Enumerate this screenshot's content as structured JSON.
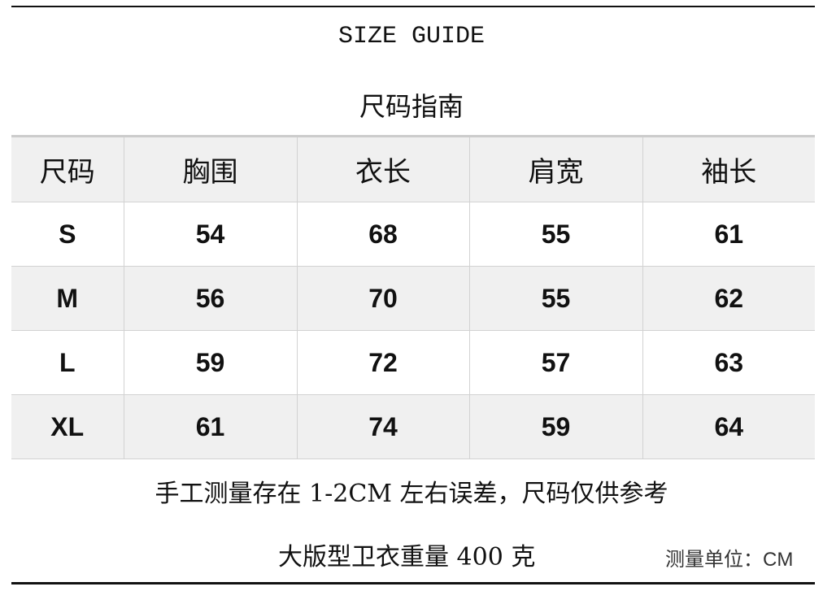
{
  "title_en": "SIZE GUIDE",
  "title_cn": "尺码指南",
  "table": {
    "headers": [
      "尺码",
      "胸围",
      "衣长",
      "肩宽",
      "袖长"
    ],
    "rows": [
      [
        "S",
        "54",
        "68",
        "55",
        "61"
      ],
      [
        "M",
        "56",
        "70",
        "55",
        "62"
      ],
      [
        "L",
        "59",
        "72",
        "57",
        "63"
      ],
      [
        "XL",
        "61",
        "74",
        "59",
        "64"
      ]
    ]
  },
  "note": "手工测量存在 1-2CM 左右误差，尺码仅供参考",
  "weight": "大版型卫衣重量 400 克",
  "unit_label": "测量单位：",
  "unit_value": "CM",
  "colors": {
    "header_bg": "#f0f0f0",
    "alt_row_bg": "#f0f0f0",
    "rule": "#111111"
  }
}
